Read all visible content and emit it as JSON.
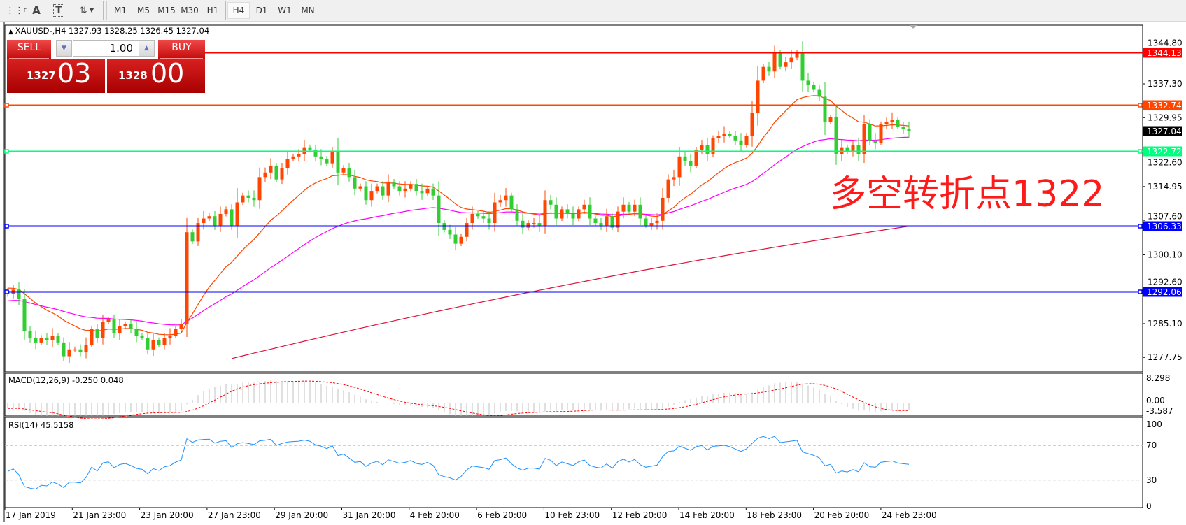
{
  "toolbar": {
    "tools": [
      {
        "name": "grid-fibo-icon",
        "glyph": "⋮⋮"
      },
      {
        "name": "text-tool-icon",
        "glyph": "A"
      },
      {
        "name": "text-label-icon",
        "glyph": "T"
      },
      {
        "name": "arrows-tool-icon",
        "glyph": "⇅▾"
      }
    ],
    "timeframes": [
      "M1",
      "M5",
      "M15",
      "M30",
      "H1",
      "H4",
      "D1",
      "W1",
      "MN"
    ],
    "selected_timeframe": "H4"
  },
  "chart": {
    "symbol_line": "XAUUSD-,H4  1327.93 1328.25 1326.45 1327.04",
    "trade_panel": {
      "sell_label": "SELL",
      "buy_label": "BUY",
      "lot": "1.00",
      "sell_price_small": "1327",
      "sell_price_large": "03",
      "buy_price_small": "1328",
      "buy_price_large": "00"
    },
    "annotation": "多空转折点1322",
    "colors": {
      "bull_candle": "#ff4500",
      "bear_candle": "#32cd32",
      "fast_ma": "#ff4500",
      "mid_ma": "#ff00ff",
      "slow_ma": "#dc143c",
      "macd_hist": "#c0c0c0",
      "macd_signal": "#ff0000",
      "rsi_line": "#1e90ff"
    },
    "price_axis": {
      "ticks": [
        "1344.80",
        "1337.30",
        "1329.95",
        "1322.60",
        "1314.95",
        "1307.60",
        "1300.10",
        "1292.60",
        "1285.10",
        "1277.75"
      ],
      "range": [
        1277.75,
        1344.8
      ]
    },
    "levels": [
      {
        "price": "1344.13",
        "color": "#ff0000",
        "markers": false
      },
      {
        "price": "1332.74",
        "color": "#ff4500",
        "markers": true
      },
      {
        "price": "1322.72",
        "color": "#00ff7f",
        "markers": true
      },
      {
        "price": "1306.33",
        "color": "#0000ff",
        "markers": true
      },
      {
        "price": "1292.06",
        "color": "#0000ff",
        "markers": true
      }
    ],
    "current_price": {
      "price": "1327.04",
      "color": "#000000"
    },
    "slow_ma_values": {
      "start": 1277.5,
      "end": 1306.3
    },
    "closes": [
      1291.5,
      1292.5,
      1290.5,
      1283.5,
      1282,
      1281,
      1282,
      1281.5,
      1282.5,
      1281,
      1278,
      1279.5,
      1279.5,
      1279,
      1280.5,
      1284,
      1282,
      1285.5,
      1286,
      1283,
      1284.5,
      1285,
      1284,
      1282.5,
      1282,
      1279.5,
      1281.5,
      1280.5,
      1282,
      1282.5,
      1284,
      1285,
      1305,
      1303,
      1307,
      1308,
      1308.5,
      1306.5,
      1309,
      1310,
      1306.5,
      1311.5,
      1313,
      1312.5,
      1312,
      1317,
      1318,
      1319.5,
      1316.5,
      1319,
      1321,
      1321.5,
      1322,
      1323.5,
      1323,
      1321.5,
      1321,
      1320,
      1322.5,
      1318,
      1319,
      1317,
      1314.5,
      1315,
      1312,
      1314,
      1315,
      1313,
      1316,
      1315,
      1314,
      1314.5,
      1315.5,
      1314,
      1313.5,
      1314.5,
      1313,
      1307,
      1305.5,
      1304.5,
      1302.5,
      1304,
      1307,
      1309,
      1308.5,
      1308,
      1307,
      1311.5,
      1312,
      1313,
      1310,
      1307.5,
      1306,
      1307,
      1307,
      1306.5,
      1312,
      1311,
      1308,
      1310,
      1309,
      1308,
      1310,
      1311,
      1308,
      1307,
      1306.5,
      1308.5,
      1306,
      1309.5,
      1311,
      1309.5,
      1311,
      1308,
      1306.5,
      1307,
      1307.5,
      1312.5,
      1316.5,
      1317,
      1321.5,
      1320.5,
      1319.5,
      1323,
      1324,
      1322,
      1325.5,
      1326,
      1326.5,
      1326,
      1325,
      1324,
      1326,
      1331,
      1338,
      1341,
      1340,
      1344,
      1341,
      1342,
      1343,
      1344,
      1338,
      1337,
      1336,
      1334.5,
      1329,
      1330,
      1322,
      1323.5,
      1322.5,
      1324,
      1322,
      1328.5,
      1325,
      1324.5,
      1328.5,
      1329,
      1329.5,
      1328,
      1327.5,
      1327.04
    ],
    "time_labels": [
      "17 Jan 2019",
      "21 Jan 23:00",
      "23 Jan 20:00",
      "27 Jan 23:00",
      "29 Jan 20:00",
      "31 Jan 20:00",
      "4 Feb 20:00",
      "6 Feb 20:00",
      "10 Feb 23:00",
      "12 Feb 20:00",
      "14 Feb 20:00",
      "18 Feb 23:00",
      "20 Feb 20:00",
      "24 Feb 23:00"
    ]
  },
  "macd": {
    "label": "MACD(12,26,9) -0.250 0.048",
    "axis_labels": [
      "8.298",
      "0.00",
      "-3.587"
    ],
    "range": [
      -3.587,
      8.298
    ]
  },
  "rsi": {
    "label": "RSI(14) 45.5158",
    "axis_labels": [
      "100",
      "70",
      "30",
      "0"
    ],
    "levels": [
      70,
      30
    ]
  }
}
